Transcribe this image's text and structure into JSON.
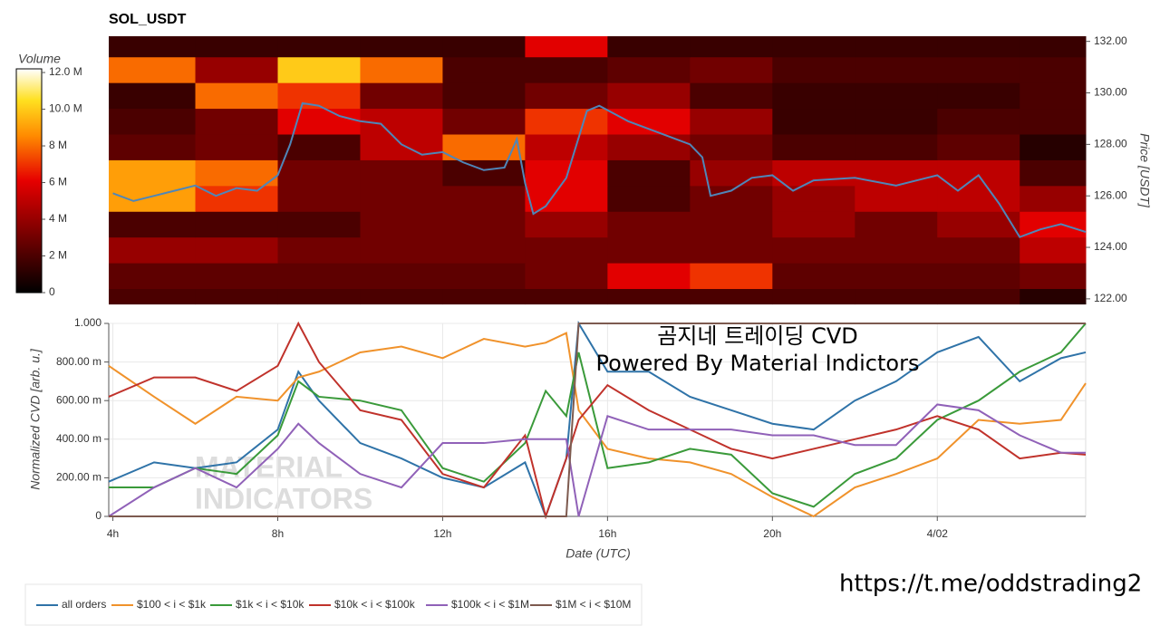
{
  "chart_data": [
    {
      "type": "heatmap",
      "title": "SOL_USDT",
      "xlim": [
        3.9,
        27.6
      ],
      "x_bins": [
        3.9,
        6,
        8,
        10,
        12,
        14,
        16,
        18,
        20,
        22,
        24,
        26,
        27.6
      ],
      "y_bins": [
        121.8,
        122.4,
        123.4,
        124.4,
        125.4,
        126.4,
        127.4,
        128.4,
        129.4,
        130.4,
        131.4,
        132.2
      ],
      "z": [
        [
          2,
          2,
          2,
          2,
          2,
          2,
          2,
          2,
          2,
          2,
          2,
          1
        ],
        [
          2.5,
          2.5,
          2.5,
          2.5,
          2.5,
          3,
          6,
          7,
          2.5,
          2.5,
          2.5,
          3
        ],
        [
          4,
          4,
          3,
          3,
          3,
          3,
          3,
          3,
          3,
          3,
          3,
          5
        ],
        [
          2,
          2,
          2,
          3,
          3,
          4,
          3,
          3,
          4,
          3,
          4,
          6
        ],
        [
          9,
          7,
          3,
          3,
          3,
          6,
          2,
          3,
          4,
          5,
          5,
          4
        ],
        [
          9,
          8,
          3,
          3,
          2,
          6,
          2,
          4,
          5,
          5,
          5,
          2
        ],
        [
          2.5,
          3,
          2,
          5,
          8,
          5,
          4,
          3,
          2,
          2,
          2.5,
          1
        ],
        [
          2,
          3,
          6,
          5,
          3,
          7,
          6,
          4,
          1.5,
          1.5,
          2,
          2
        ],
        [
          1.5,
          8,
          7,
          3,
          2,
          3,
          4,
          2,
          1.5,
          1.5,
          1.5,
          2
        ],
        [
          8,
          4,
          10,
          8,
          2,
          2,
          2.5,
          3,
          2,
          2,
          2,
          2
        ],
        [
          1.5,
          1.5,
          1.5,
          1.5,
          1.5,
          6,
          1.5,
          1.5,
          1.5,
          1.5,
          1.5,
          1.5
        ]
      ],
      "colorbar": {
        "label": "Volume",
        "lim": [
          0,
          12.2
        ],
        "ticks": [
          0,
          {
            "value": 2,
            "label": "2 M"
          },
          {
            "value": 4,
            "label": "4 M"
          },
          {
            "value": 6,
            "label": "6 M"
          },
          {
            "value": 8,
            "label": "8 M"
          },
          {
            "value": 10,
            "label": "10.0 M"
          },
          {
            "value": 12,
            "label": "12.0 M"
          }
        ]
      },
      "ylabel": "Price [USDT]",
      "ylim": [
        121.82,
        132.2
      ],
      "yticks": [
        {
          "value": 122,
          "label": "122.00"
        },
        {
          "value": 124,
          "label": "124.00"
        },
        {
          "value": 126,
          "label": "126.00"
        },
        {
          "value": 128,
          "label": "128.00"
        },
        {
          "value": 130,
          "label": "130.00"
        },
        {
          "value": 132,
          "label": "132.00"
        }
      ],
      "line": {
        "color": "#4f86b8",
        "x": [
          4,
          4.5,
          5,
          5.5,
          6,
          6.5,
          7,
          7.5,
          8,
          8.3,
          8.6,
          9,
          9.5,
          10,
          10.5,
          11,
          11.5,
          12,
          12.5,
          13,
          13.5,
          13.8,
          14,
          14.2,
          14.5,
          15,
          15.5,
          15.8,
          16.5,
          17,
          18,
          18.3,
          18.5,
          19,
          19.5,
          20,
          20.5,
          21,
          22,
          23,
          24,
          24.5,
          25,
          25.5,
          26,
          26.5,
          27,
          27.6
        ],
        "values": [
          126.1,
          125.8,
          126,
          126.2,
          126.4,
          126,
          126.3,
          126.2,
          126.8,
          128,
          129.6,
          129.5,
          129.1,
          128.9,
          128.8,
          128,
          127.6,
          127.7,
          127.3,
          127,
          127.1,
          128.2,
          126.5,
          125.3,
          125.6,
          126.7,
          129.3,
          129.5,
          128.9,
          128.6,
          128,
          127.5,
          126,
          126.2,
          126.7,
          126.8,
          126.2,
          126.6,
          126.7,
          126.4,
          126.8,
          126.2,
          126.8,
          125.7,
          124.4,
          124.7,
          124.9,
          124.6
        ]
      }
    },
    {
      "type": "line",
      "ylabel": "Normalized CVD [arb. u.]",
      "xlabel": "Date (UTC)",
      "annotations": [
        "곰지네 트레이딩 CVD",
        "Powered By Material Indictors"
      ],
      "watermark": [
        "MATERIAL",
        "INDICATORS"
      ],
      "footer": "https://t.me/oddstrading2",
      "xlim": [
        3.9,
        27.6
      ],
      "xticks": [
        {
          "value": 4,
          "label": "4h"
        },
        {
          "value": 8,
          "label": "8h"
        },
        {
          "value": 12,
          "label": "12h"
        },
        {
          "value": 16,
          "label": "16h"
        },
        {
          "value": 20,
          "label": "20h"
        },
        {
          "value": 24,
          "label": "4/02"
        }
      ],
      "ylim": [
        0,
        1
      ],
      "yticks": [
        0,
        {
          "value": 0.2,
          "label": "200.00 m"
        },
        {
          "value": 0.4,
          "label": "400.00 m"
        },
        {
          "value": 0.6,
          "label": "600.00 m"
        },
        {
          "value": 0.8,
          "label": "800.00 m"
        },
        {
          "value": 1,
          "label": "1.000"
        }
      ],
      "grid": true,
      "x": [
        3.9,
        5,
        6,
        7,
        8,
        8.5,
        9,
        10,
        11,
        12,
        13,
        14,
        14.5,
        15,
        15.3,
        16,
        17,
        18,
        19,
        20,
        21,
        22,
        23,
        24,
        25,
        26,
        27,
        27.6
      ],
      "series": [
        {
          "name": "all orders",
          "color": "#2f73a8",
          "values": [
            0.18,
            0.28,
            0.25,
            0.28,
            0.45,
            0.75,
            0.6,
            0.38,
            0.3,
            0.2,
            0.15,
            0.28,
            0.0,
            0.3,
            1.0,
            0.75,
            0.75,
            0.62,
            0.55,
            0.48,
            0.45,
            0.6,
            0.7,
            0.85,
            0.93,
            0.7,
            0.82,
            0.85
          ]
        },
        {
          "name": "$100 < i < $1k",
          "color": "#f0922b",
          "values": [
            0.78,
            0.62,
            0.48,
            0.62,
            0.6,
            0.72,
            0.75,
            0.85,
            0.88,
            0.82,
            0.92,
            0.88,
            0.9,
            0.95,
            0.55,
            0.35,
            0.3,
            0.28,
            0.22,
            0.1,
            0.0,
            0.15,
            0.22,
            0.3,
            0.5,
            0.48,
            0.5,
            0.69
          ]
        },
        {
          "name": "$1k < i < $10k",
          "color": "#3a9a3a",
          "values": [
            0.15,
            0.15,
            0.25,
            0.22,
            0.42,
            0.7,
            0.62,
            0.6,
            0.55,
            0.25,
            0.18,
            0.38,
            0.65,
            0.52,
            0.85,
            0.25,
            0.28,
            0.35,
            0.32,
            0.12,
            0.05,
            0.22,
            0.3,
            0.5,
            0.6,
            0.75,
            0.85,
            1.0
          ]
        },
        {
          "name": "$10k < i < $100k",
          "color": "#c0322b",
          "values": [
            0.62,
            0.72,
            0.72,
            0.65,
            0.78,
            1.0,
            0.8,
            0.55,
            0.5,
            0.22,
            0.15,
            0.42,
            0.0,
            0.3,
            0.5,
            0.68,
            0.55,
            0.45,
            0.35,
            0.3,
            0.35,
            0.4,
            0.45,
            0.52,
            0.45,
            0.3,
            0.33,
            0.32
          ]
        },
        {
          "name": "$100k < i < $1M",
          "color": "#9061b8",
          "values": [
            0.0,
            0.15,
            0.25,
            0.15,
            0.35,
            0.48,
            0.38,
            0.22,
            0.15,
            0.38,
            0.38,
            0.4,
            0.4,
            0.4,
            0.0,
            0.52,
            0.45,
            0.45,
            0.45,
            0.42,
            0.42,
            0.37,
            0.37,
            0.58,
            0.55,
            0.42,
            0.33,
            0.33
          ]
        },
        {
          "name": "$1M < i < $10M",
          "color": "#7d5a4f",
          "values": [
            0,
            0,
            0,
            0,
            0,
            0,
            0,
            0,
            0,
            0,
            0,
            0,
            0,
            0,
            1,
            1,
            1,
            1,
            1,
            1,
            1,
            1,
            1,
            1,
            1,
            1,
            1,
            1
          ]
        }
      ]
    }
  ]
}
